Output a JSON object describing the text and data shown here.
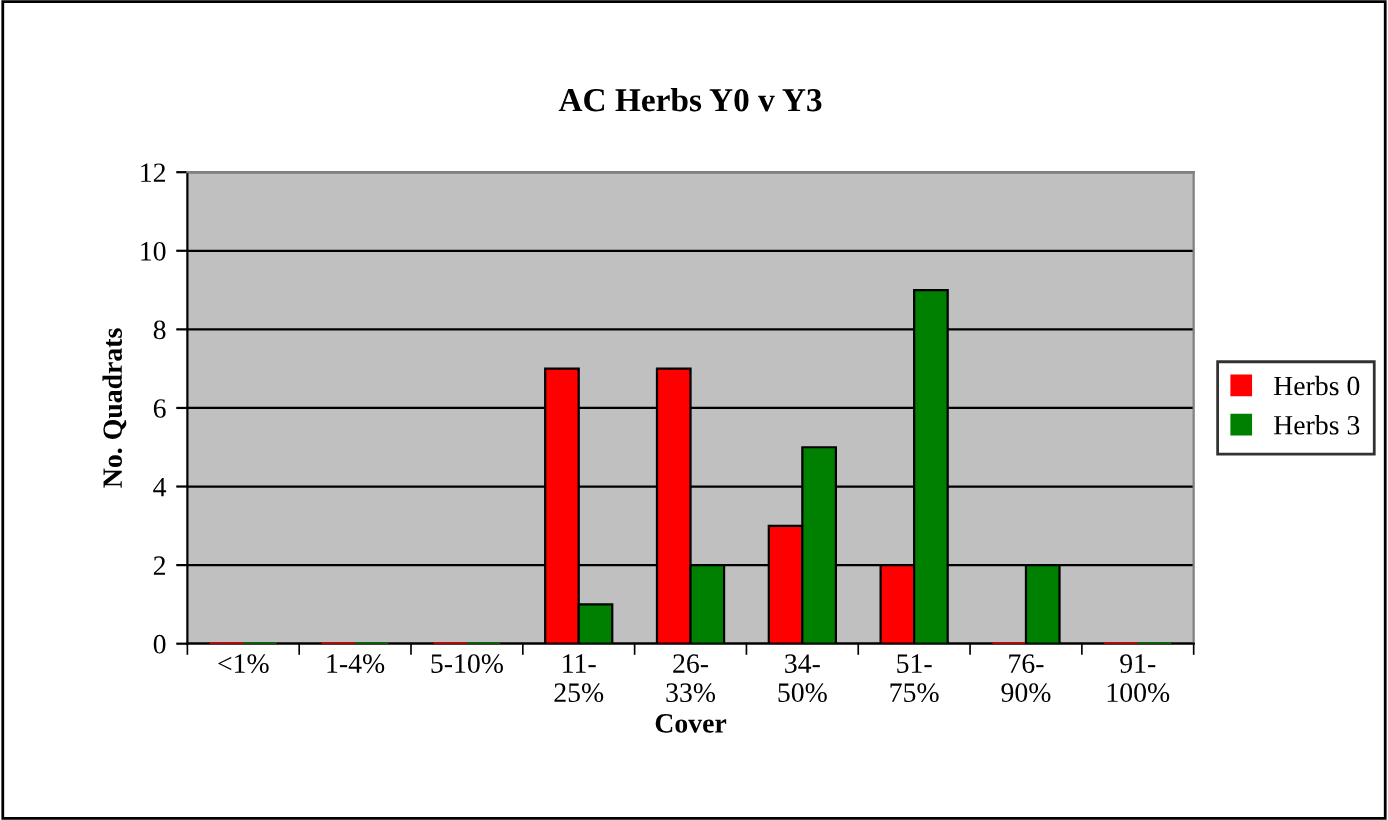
{
  "chart_data": {
    "type": "bar",
    "title": "AC Herbs Y0 v Y3",
    "xlabel": "Cover",
    "ylabel": "No. Quadrats",
    "categories": [
      "<1%",
      "1-4%",
      "5-10%",
      "11-\n25%",
      "26-\n33%",
      "34-\n50%",
      "51-\n75%",
      "76-\n90%",
      "91-\n100%"
    ],
    "series": [
      {
        "name": "Herbs 0",
        "color": "#ff0000",
        "values": [
          0,
          0,
          0,
          7,
          7,
          3,
          2,
          0,
          0
        ]
      },
      {
        "name": "Herbs 3",
        "color": "#008000",
        "values": [
          0,
          0,
          0,
          1,
          2,
          5,
          9,
          2,
          0
        ]
      }
    ],
    "ylim": [
      0,
      12
    ],
    "yticks": [
      0,
      2,
      4,
      6,
      8,
      10,
      12
    ],
    "grid": "y",
    "legend": "right"
  }
}
